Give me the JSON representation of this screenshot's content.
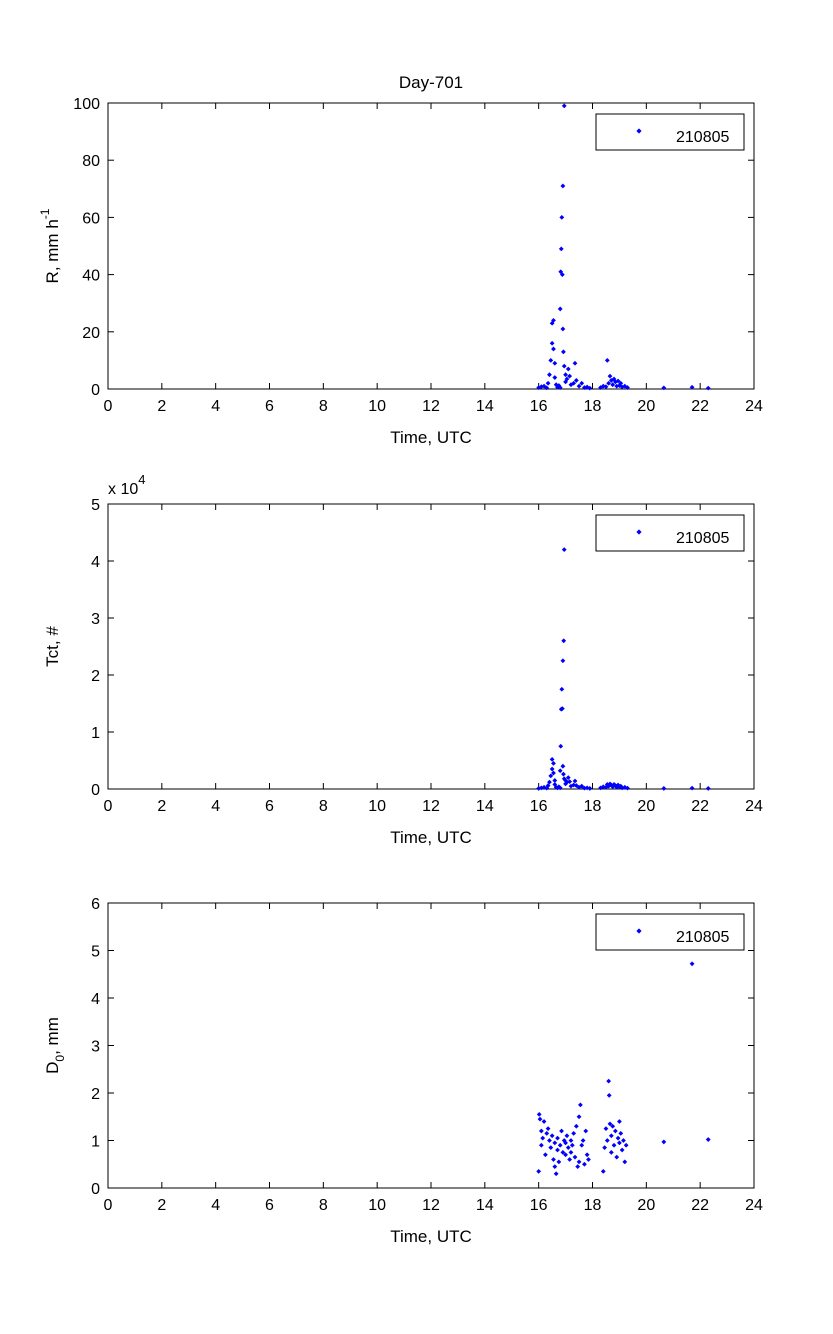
{
  "chart_data": [
    {
      "type": "scatter",
      "title": "Day-701",
      "xlabel": "Time, UTC",
      "ylabel": "R, mm h",
      "ylabel_sup": "-1",
      "xlim": [
        0,
        24
      ],
      "ylim": [
        0,
        100
      ],
      "xticks": [
        "0",
        "2",
        "4",
        "6",
        "8",
        "10",
        "12",
        "14",
        "16",
        "18",
        "20",
        "22",
        "24"
      ],
      "yticks": [
        "0",
        "20",
        "40",
        "60",
        "80",
        "100"
      ],
      "exponent_label": "",
      "exponent_sup": "",
      "legend": {
        "label": "210805",
        "position": "top-right"
      },
      "color": "#0000ff",
      "points": [
        [
          16.0,
          0.5
        ],
        [
          16.1,
          0.8
        ],
        [
          16.2,
          1.0
        ],
        [
          16.3,
          0.4
        ],
        [
          16.35,
          2.0
        ],
        [
          16.4,
          5.0
        ],
        [
          16.45,
          10.0
        ],
        [
          16.5,
          16.0
        ],
        [
          16.5,
          23.0
        ],
        [
          16.55,
          24.0
        ],
        [
          16.55,
          14.0
        ],
        [
          16.6,
          9.0
        ],
        [
          16.6,
          4.0
        ],
        [
          16.65,
          1.5
        ],
        [
          16.7,
          0.6
        ],
        [
          16.75,
          1.2
        ],
        [
          16.8,
          0.5
        ],
        [
          16.8,
          28.0
        ],
        [
          16.82,
          41.0
        ],
        [
          16.84,
          49.0
        ],
        [
          16.86,
          60.0
        ],
        [
          16.88,
          40.0
        ],
        [
          16.9,
          71.0
        ],
        [
          16.9,
          21.0
        ],
        [
          16.92,
          13.0
        ],
        [
          16.95,
          99.0
        ],
        [
          16.95,
          8.0
        ],
        [
          17.0,
          5.0
        ],
        [
          17.0,
          2.5
        ],
        [
          17.05,
          3.5
        ],
        [
          17.1,
          7.0
        ],
        [
          17.15,
          4.5
        ],
        [
          17.2,
          1.5
        ],
        [
          17.3,
          2.0
        ],
        [
          17.35,
          9.0
        ],
        [
          17.4,
          3.0
        ],
        [
          17.5,
          1.0
        ],
        [
          17.6,
          2.0
        ],
        [
          17.7,
          0.5
        ],
        [
          17.8,
          0.7
        ],
        [
          17.9,
          0.3
        ],
        [
          18.3,
          0.5
        ],
        [
          18.4,
          1.0
        ],
        [
          18.5,
          0.8
        ],
        [
          18.55,
          10.0
        ],
        [
          18.6,
          2.0
        ],
        [
          18.65,
          4.5
        ],
        [
          18.7,
          3.0
        ],
        [
          18.75,
          1.5
        ],
        [
          18.8,
          3.5
        ],
        [
          18.85,
          2.5
        ],
        [
          18.9,
          1.0
        ],
        [
          18.95,
          2.8
        ],
        [
          19.0,
          1.2
        ],
        [
          19.05,
          2.0
        ],
        [
          19.1,
          0.7
        ],
        [
          19.2,
          1.0
        ],
        [
          19.3,
          0.5
        ],
        [
          20.65,
          0.4
        ],
        [
          21.7,
          0.6
        ],
        [
          22.3,
          0.3
        ]
      ]
    },
    {
      "type": "scatter",
      "title": "",
      "xlabel": "Time, UTC",
      "ylabel": "Tct, #",
      "ylabel_sup": "",
      "xlim": [
        0,
        24
      ],
      "ylim": [
        0,
        50000
      ],
      "xticks": [
        "0",
        "2",
        "4",
        "6",
        "8",
        "10",
        "12",
        "14",
        "16",
        "18",
        "20",
        "22",
        "24"
      ],
      "yticks": [
        "0",
        "1",
        "2",
        "3",
        "4",
        "5"
      ],
      "exponent_label": "x 10",
      "exponent_sup": "4",
      "legend": {
        "label": "210805",
        "position": "top-right"
      },
      "color": "#0000ff",
      "points": [
        [
          16.0,
          100
        ],
        [
          16.1,
          200
        ],
        [
          16.2,
          300
        ],
        [
          16.3,
          150
        ],
        [
          16.35,
          600
        ],
        [
          16.4,
          1200
        ],
        [
          16.45,
          2300
        ],
        [
          16.5,
          3500
        ],
        [
          16.5,
          5200
        ],
        [
          16.55,
          4500
        ],
        [
          16.55,
          2800
        ],
        [
          16.6,
          1500
        ],
        [
          16.6,
          800
        ],
        [
          16.65,
          300
        ],
        [
          16.7,
          200
        ],
        [
          16.75,
          400
        ],
        [
          16.8,
          200
        ],
        [
          16.8,
          3200
        ],
        [
          16.82,
          7500
        ],
        [
          16.84,
          14000
        ],
        [
          16.86,
          17500
        ],
        [
          16.88,
          14100
        ],
        [
          16.9,
          22500
        ],
        [
          16.9,
          4000
        ],
        [
          16.92,
          2600
        ],
        [
          16.93,
          26000
        ],
        [
          16.95,
          42000
        ],
        [
          16.95,
          1800
        ],
        [
          17.0,
          1500
        ],
        [
          17.0,
          900
        ],
        [
          17.05,
          1200
        ],
        [
          17.1,
          2000
        ],
        [
          17.15,
          1300
        ],
        [
          17.2,
          500
        ],
        [
          17.3,
          700
        ],
        [
          17.35,
          1400
        ],
        [
          17.4,
          600
        ],
        [
          17.5,
          300
        ],
        [
          17.6,
          500
        ],
        [
          17.7,
          150
        ],
        [
          17.8,
          200
        ],
        [
          17.9,
          100
        ],
        [
          18.3,
          200
        ],
        [
          18.4,
          400
        ],
        [
          18.5,
          300
        ],
        [
          18.55,
          800
        ],
        [
          18.6,
          500
        ],
        [
          18.65,
          900
        ],
        [
          18.7,
          700
        ],
        [
          18.75,
          400
        ],
        [
          18.8,
          800
        ],
        [
          18.85,
          600
        ],
        [
          18.9,
          300
        ],
        [
          18.95,
          700
        ],
        [
          19.0,
          400
        ],
        [
          19.05,
          500
        ],
        [
          19.1,
          200
        ],
        [
          19.2,
          300
        ],
        [
          19.3,
          150
        ],
        [
          20.65,
          100
        ],
        [
          21.7,
          150
        ],
        [
          22.3,
          100
        ]
      ]
    },
    {
      "type": "scatter",
      "title": "",
      "xlabel": "Time, UTC",
      "ylabel": "D",
      "ylabel_sub": "0",
      "ylabel_suffix": ", mm",
      "xlim": [
        0,
        24
      ],
      "ylim": [
        0,
        6
      ],
      "xticks": [
        "0",
        "2",
        "4",
        "6",
        "8",
        "10",
        "12",
        "14",
        "16",
        "18",
        "20",
        "22",
        "24"
      ],
      "yticks": [
        "0",
        "1",
        "2",
        "3",
        "4",
        "5",
        "6"
      ],
      "exponent_label": "",
      "exponent_sup": "",
      "legend": {
        "label": "210805",
        "position": "top-right"
      },
      "color": "#0000ff",
      "points": [
        [
          16.0,
          0.35
        ],
        [
          16.02,
          1.55
        ],
        [
          16.05,
          1.45
        ],
        [
          16.1,
          1.2
        ],
        [
          16.1,
          0.9
        ],
        [
          16.15,
          1.05
        ],
        [
          16.2,
          1.4
        ],
        [
          16.25,
          0.7
        ],
        [
          16.3,
          1.15
        ],
        [
          16.35,
          1.25
        ],
        [
          16.4,
          1.0
        ],
        [
          16.45,
          0.85
        ],
        [
          16.5,
          1.1
        ],
        [
          16.55,
          0.6
        ],
        [
          16.6,
          0.45
        ],
        [
          16.6,
          0.95
        ],
        [
          16.65,
          0.3
        ],
        [
          16.7,
          0.8
        ],
        [
          16.7,
          1.05
        ],
        [
          16.75,
          0.55
        ],
        [
          16.8,
          0.9
        ],
        [
          16.85,
          1.2
        ],
        [
          16.9,
          0.75
        ],
        [
          16.95,
          1.0
        ],
        [
          17.0,
          0.95
        ],
        [
          17.0,
          0.7
        ],
        [
          17.05,
          1.1
        ],
        [
          17.1,
          0.85
        ],
        [
          17.15,
          0.6
        ],
        [
          17.2,
          1.0
        ],
        [
          17.2,
          0.75
        ],
        [
          17.25,
          0.9
        ],
        [
          17.3,
          1.15
        ],
        [
          17.35,
          0.65
        ],
        [
          17.4,
          1.3
        ],
        [
          17.45,
          0.45
        ],
        [
          17.5,
          0.55
        ],
        [
          17.5,
          1.5
        ],
        [
          17.55,
          1.75
        ],
        [
          17.6,
          0.9
        ],
        [
          17.65,
          1.0
        ],
        [
          17.7,
          0.5
        ],
        [
          17.75,
          1.2
        ],
        [
          17.8,
          0.7
        ],
        [
          17.85,
          0.6
        ],
        [
          18.4,
          0.35
        ],
        [
          18.45,
          0.85
        ],
        [
          18.5,
          1.25
        ],
        [
          18.55,
          1.0
        ],
        [
          18.6,
          2.25
        ],
        [
          18.62,
          1.95
        ],
        [
          18.65,
          1.35
        ],
        [
          18.7,
          0.75
        ],
        [
          18.7,
          1.1
        ],
        [
          18.75,
          1.3
        ],
        [
          18.8,
          0.9
        ],
        [
          18.85,
          1.2
        ],
        [
          18.9,
          0.65
        ],
        [
          18.95,
          1.05
        ],
        [
          19.0,
          1.4
        ],
        [
          19.0,
          0.95
        ],
        [
          19.05,
          1.15
        ],
        [
          19.1,
          0.8
        ],
        [
          19.15,
          1.0
        ],
        [
          19.2,
          0.55
        ],
        [
          19.25,
          0.9
        ],
        [
          20.65,
          0.97
        ],
        [
          21.7,
          4.72
        ],
        [
          22.3,
          1.02
        ]
      ]
    }
  ]
}
